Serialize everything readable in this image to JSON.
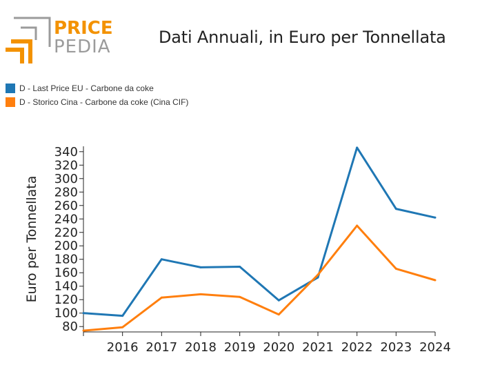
{
  "header": {
    "logo_word_top": "PRICE",
    "logo_word_bottom": "PEDIA",
    "title": "Dati Annuali, in Euro per Tonnellata"
  },
  "colors": {
    "series_blue": "#1f77b4",
    "series_orange": "#ff7f0e",
    "logo_orange": "#f39200",
    "logo_gray": "#9b9b9b"
  },
  "chart_data": {
    "type": "line",
    "title": "Dati Annuali, in Euro per Tonnellata",
    "xlabel": "",
    "ylabel": "Euro per Tonnellata",
    "x": [
      2015,
      2016,
      2017,
      2018,
      2019,
      2020,
      2021,
      2022,
      2023,
      2024
    ],
    "xticks": [
      2016,
      2017,
      2018,
      2019,
      2020,
      2021,
      2022,
      2023,
      2024
    ],
    "yticks": [
      80,
      100,
      120,
      140,
      160,
      180,
      200,
      220,
      240,
      260,
      280,
      300,
      320,
      340
    ],
    "xlim": [
      2015,
      2024
    ],
    "ylim": [
      72,
      348
    ],
    "legend_position": "top-left",
    "grid": false,
    "series": [
      {
        "name": "D - Last Price EU - Carbone da coke",
        "color": "#1f77b4",
        "values": [
          100,
          96,
          180,
          168,
          169,
          119,
          153,
          346,
          255,
          242
        ]
      },
      {
        "name": "D - Storico Cina - Carbone da coke (Cina CIF)",
        "color": "#ff7f0e",
        "values": [
          74,
          79,
          123,
          128,
          124,
          98,
          157,
          230,
          166,
          149
        ]
      }
    ]
  }
}
